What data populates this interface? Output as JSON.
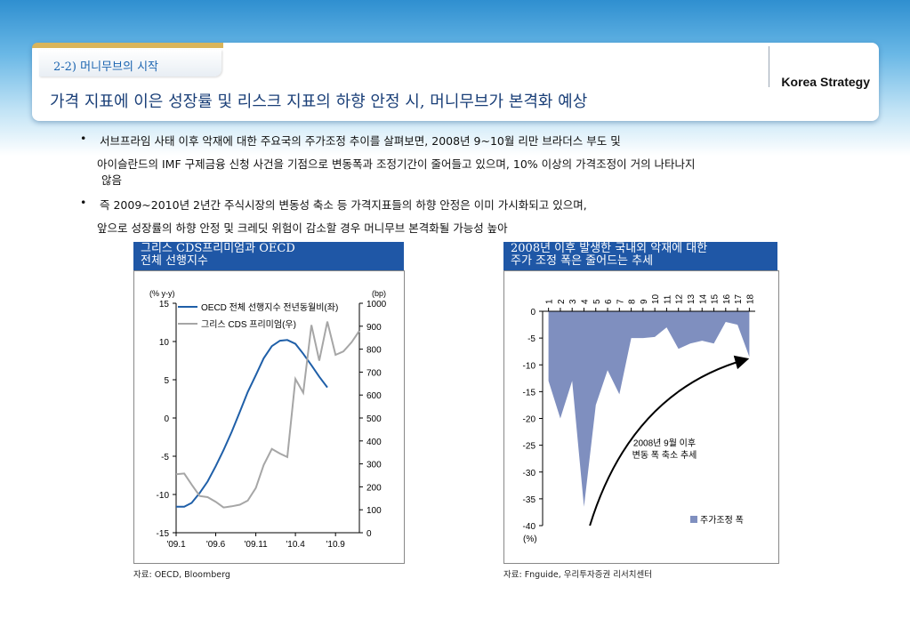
{
  "header": {
    "subtitle": "2-2) 머니무브의 시작",
    "title": "가격 지표에 이은 성장률 및 리스크 지표의 하향 안정 시, 머니무브가 본격화 예상",
    "brand": "Korea Strategy"
  },
  "bullets": {
    "b1_line1": "서브프라임 사태 이후 악재에 대한 주요국의 주가조정 추이를 살펴보면, 2008년 9~10월 리만 브라더스 부도 및",
    "b1_line2": "아이슬란드의 IMF 구제금융 신청 사건을 기점으로 변동폭과 조정기간이 줄어들고 있으며, 10% 이상의 가격조정이 거의 나타나지",
    "b1_line3": "않음",
    "b2_line1": "즉 2009~2010년 2년간 주식시장의 변동성 축소 등 가격지표들의 하향 안정은 이미 가시화되고 있으며,",
    "b2_line2": "앞으로 성장률의 하향 안정 및 크레딧 위험이 감소할 경우 머니무브 본격화될 가능성 높아",
    "bullet_glyph": "•"
  },
  "left_panel": {
    "title_line1": "그리스 CDS프리미엄과 OECD",
    "title_line2": "전체 선행지수",
    "source": "자료: OECD, Bloomberg"
  },
  "right_panel": {
    "title_line1": "2008년 이후 발생한 국내외 악재에 대한",
    "title_line2": "주가 조정 폭은 줄어드는 추세",
    "source": "자료: Fnguide, 우리투자증권 리서치센터"
  },
  "chart_data": [
    {
      "type": "line",
      "ylabel_left": "(% y-y)",
      "ylabel_right": "(bp)",
      "x_ticks": [
        "'09.1",
        "'09.6",
        "'09.11",
        "'10.4",
        "'10.9"
      ],
      "y_left_ticks": [
        15,
        10,
        5,
        0,
        -5,
        -10,
        -15
      ],
      "y_left_range": [
        -15,
        15
      ],
      "y_right_ticks": [
        1000,
        900,
        800,
        700,
        600,
        500,
        400,
        300,
        200,
        100,
        0
      ],
      "y_right_range": [
        0,
        1000
      ],
      "series": [
        {
          "name": "OECD 전체 선행지수 전년동월비(좌)",
          "axis": "left",
          "color": "#1f5fa8",
          "x": [
            "2009-01",
            "2009-02",
            "2009-03",
            "2009-04",
            "2009-05",
            "2009-06",
            "2009-07",
            "2009-08",
            "2009-09",
            "2009-10",
            "2009-11",
            "2009-12",
            "2010-01",
            "2010-02",
            "2010-03",
            "2010-04",
            "2010-05",
            "2010-06",
            "2010-07",
            "2010-08"
          ],
          "values": [
            -11.6,
            -11.6,
            -11.1,
            -9.8,
            -8.3,
            -6.3,
            -4.2,
            -1.8,
            0.8,
            3.4,
            5.6,
            7.8,
            9.4,
            10.1,
            10.2,
            9.7,
            8.4,
            6.9,
            5.4,
            4.0
          ]
        },
        {
          "name": "그리스 CDS 프리미엄(우)",
          "axis": "right",
          "color": "#a6a6a6",
          "x": [
            "2009-01",
            "2009-02",
            "2009-03",
            "2009-04",
            "2009-05",
            "2009-06",
            "2009-07",
            "2009-08",
            "2009-09",
            "2009-10",
            "2009-11",
            "2009-12",
            "2010-01",
            "2010-02",
            "2010-03",
            "2010-04",
            "2010-05",
            "2010-06",
            "2010-07",
            "2010-08",
            "2010-09",
            "2010-10",
            "2010-11",
            "2010-12"
          ],
          "values": [
            255,
            258,
            210,
            160,
            155,
            135,
            110,
            115,
            122,
            140,
            195,
            295,
            365,
            345,
            330,
            670,
            610,
            905,
            750,
            920,
            775,
            790,
            830,
            880
          ]
        }
      ]
    },
    {
      "type": "area",
      "ylabel": "(%)",
      "categories": [
        "1",
        "2",
        "3",
        "4",
        "5",
        "6",
        "7",
        "8",
        "9",
        "10",
        "11",
        "12",
        "13",
        "14",
        "15",
        "16",
        "17",
        "18"
      ],
      "ylim": [
        -40,
        0
      ],
      "y_ticks": [
        0,
        -5,
        -10,
        -15,
        -20,
        -25,
        -30,
        -35,
        -40
      ],
      "series": [
        {
          "name": "주가조정 폭",
          "color": "#7f8fbf",
          "values": [
            -13,
            -20,
            -13,
            -36.5,
            -17.5,
            -11,
            -15.5,
            -5,
            -5,
            -4.8,
            -3,
            -7,
            -6,
            -5.5,
            -6,
            -2,
            -2.5,
            -8.5
          ]
        }
      ],
      "annotation": {
        "line1": "2008년 9월 이후",
        "line2": "변동 폭 축소 추세"
      }
    }
  ]
}
